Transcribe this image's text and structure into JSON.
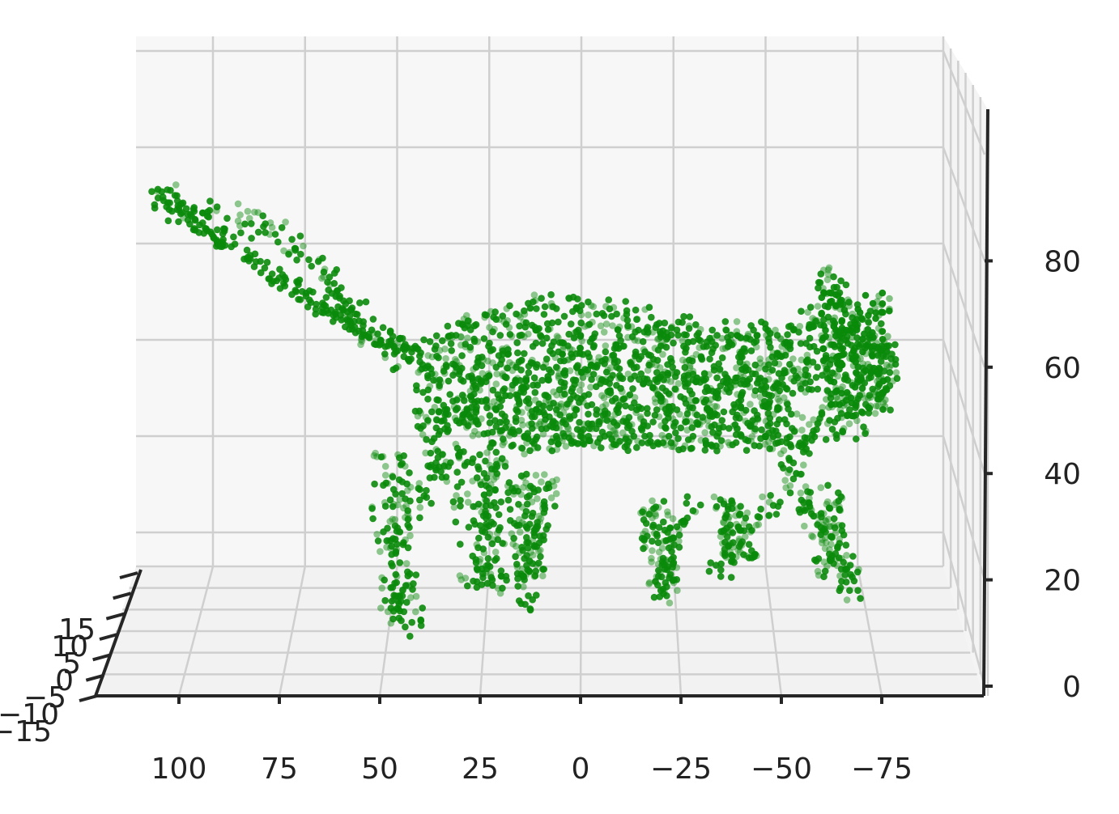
{
  "chart_data": {
    "type": "scatter",
    "projection": "3d",
    "title": "",
    "xlabel": "",
    "ylabel": "",
    "zlabel": "",
    "grid": true,
    "marker_color": "#0a8a0a",
    "pane_color": "#f7f7f7",
    "grid_color": "#cfcfcf",
    "x_ticks": [
      "100",
      "75",
      "50",
      "25",
      "0",
      "−25",
      "−50",
      "−75"
    ],
    "x_tick_values": [
      100,
      75,
      50,
      25,
      0,
      -25,
      -50,
      -75
    ],
    "y_ticks": [
      "15",
      "10",
      "5",
      "0",
      "−5",
      "−10",
      "−15"
    ],
    "y_tick_values": [
      15,
      10,
      5,
      0,
      -5,
      -10,
      -15
    ],
    "z_ticks": [
      "0",
      "20",
      "40",
      "60",
      "80"
    ],
    "z_tick_values": [
      0,
      20,
      40,
      60,
      80
    ],
    "xlim": [
      120,
      -100
    ],
    "zlim": [
      -2,
      98
    ],
    "series": [
      {
        "points": [
          [
            104,
            92
          ],
          [
            100,
            90
          ],
          [
            94,
            89
          ],
          [
            88,
            88
          ],
          [
            82,
            87
          ],
          [
            76,
            85
          ],
          [
            71,
            82
          ],
          [
            67,
            79
          ],
          [
            63,
            76
          ],
          [
            60,
            73
          ],
          [
            56,
            70
          ],
          [
            52,
            67
          ],
          [
            48,
            64
          ],
          [
            44,
            62
          ],
          [
            40,
            61
          ],
          [
            36,
            64
          ],
          [
            31,
            66
          ],
          [
            26,
            68
          ],
          [
            21,
            69
          ],
          [
            16,
            70
          ],
          [
            11,
            71
          ],
          [
            6,
            71
          ],
          [
            1,
            71
          ],
          [
            -4,
            70
          ],
          [
            -9,
            70
          ],
          [
            -14,
            69
          ],
          [
            -19,
            68
          ],
          [
            -24,
            67
          ],
          [
            -29,
            66
          ],
          [
            -34,
            66
          ],
          [
            -39,
            66
          ],
          [
            -44,
            66
          ],
          [
            -49,
            66
          ],
          [
            -53,
            67
          ],
          [
            -57,
            68
          ],
          [
            -60,
            70
          ],
          [
            -62,
            74
          ],
          [
            -63,
            77
          ],
          [
            -66,
            70
          ],
          [
            -69,
            68
          ],
          [
            -72,
            66
          ],
          [
            -75,
            64
          ],
          [
            -76,
            62
          ],
          [
            -77,
            59
          ],
          [
            -76,
            56
          ],
          [
            -74,
            54
          ],
          [
            -71,
            53
          ],
          [
            -67,
            52
          ],
          [
            -62,
            50
          ],
          [
            -58,
            48
          ],
          [
            -55,
            45
          ],
          [
            -53,
            42
          ],
          [
            -53,
            39
          ],
          [
            -55,
            35
          ],
          [
            -58,
            32
          ],
          [
            -61,
            29
          ],
          [
            -64,
            26
          ],
          [
            -66,
            22
          ],
          [
            -67,
            18
          ],
          [
            -48,
            34
          ],
          [
            -42,
            30
          ],
          [
            -38,
            27
          ],
          [
            -35,
            23
          ],
          [
            -28,
            33
          ],
          [
            -24,
            30
          ],
          [
            -22,
            26
          ],
          [
            -21,
            22
          ],
          [
            -20,
            18
          ],
          [
            -12,
            46
          ],
          [
            -6,
            47
          ],
          [
            0,
            47
          ],
          [
            6,
            47
          ],
          [
            12,
            46
          ],
          [
            21,
            44
          ],
          [
            24,
            40
          ],
          [
            24,
            36
          ],
          [
            23,
            32
          ],
          [
            23,
            28
          ],
          [
            23,
            24
          ],
          [
            22,
            20
          ],
          [
            30,
            44
          ],
          [
            36,
            41
          ],
          [
            40,
            37
          ],
          [
            43,
            33
          ],
          [
            45,
            29
          ],
          [
            46,
            25
          ],
          [
            46,
            21
          ],
          [
            45,
            17
          ],
          [
            44,
            14
          ],
          [
            42,
            12
          ],
          [
            8,
            38
          ],
          [
            9,
            34
          ],
          [
            11,
            30
          ],
          [
            13,
            27
          ],
          [
            14,
            24
          ],
          [
            14,
            20
          ],
          [
            13,
            17
          ],
          [
            38,
            58
          ],
          [
            38,
            54
          ],
          [
            38,
            50
          ],
          [
            37,
            46
          ],
          [
            36,
            42
          ],
          [
            31,
            60
          ],
          [
            26,
            60
          ],
          [
            21,
            60
          ],
          [
            16,
            60
          ],
          [
            11,
            60
          ],
          [
            6,
            60
          ],
          [
            1,
            60
          ],
          [
            -4,
            60
          ],
          [
            -9,
            60
          ],
          [
            -14,
            60
          ],
          [
            -19,
            59
          ],
          [
            -24,
            59
          ],
          [
            -29,
            58
          ],
          [
            -34,
            58
          ],
          [
            -39,
            58
          ],
          [
            -44,
            57
          ],
          [
            -49,
            57
          ],
          [
            -54,
            58
          ],
          [
            -59,
            60
          ],
          [
            -64,
            62
          ],
          [
            -68,
            63
          ],
          [
            31,
            52
          ],
          [
            26,
            52
          ],
          [
            21,
            52
          ],
          [
            16,
            52
          ],
          [
            11,
            52
          ],
          [
            6,
            52
          ],
          [
            1,
            52
          ],
          [
            -4,
            52
          ],
          [
            -9,
            52
          ],
          [
            -14,
            52
          ],
          [
            -19,
            52
          ],
          [
            -24,
            52
          ],
          [
            -29,
            51
          ],
          [
            -34,
            51
          ],
          [
            -39,
            51
          ],
          [
            -44,
            51
          ],
          [
            -49,
            52
          ],
          [
            34,
            50
          ],
          [
            28,
            49
          ],
          [
            20,
            48
          ],
          [
            14,
            47
          ],
          [
            4,
            47
          ],
          [
            -2,
            47
          ],
          [
            -16,
            47
          ],
          [
            -22,
            47
          ],
          [
            -28,
            47
          ],
          [
            -34,
            47
          ],
          [
            -40,
            47
          ],
          [
            -46,
            47
          ],
          [
            -50,
            46
          ],
          [
            20,
            66
          ],
          [
            10,
            66
          ],
          [
            0,
            66
          ],
          [
            -10,
            65
          ],
          [
            -20,
            64
          ],
          [
            -30,
            62
          ],
          [
            -40,
            62
          ],
          [
            -50,
            62
          ],
          [
            26,
            56
          ],
          [
            14,
            56
          ],
          [
            2,
            56
          ],
          [
            -10,
            56
          ],
          [
            -22,
            55
          ],
          [
            -34,
            55
          ],
          [
            -46,
            55
          ],
          [
            -56,
            57
          ],
          [
            -66,
            58
          ],
          [
            -72,
            60
          ]
        ]
      }
    ]
  }
}
